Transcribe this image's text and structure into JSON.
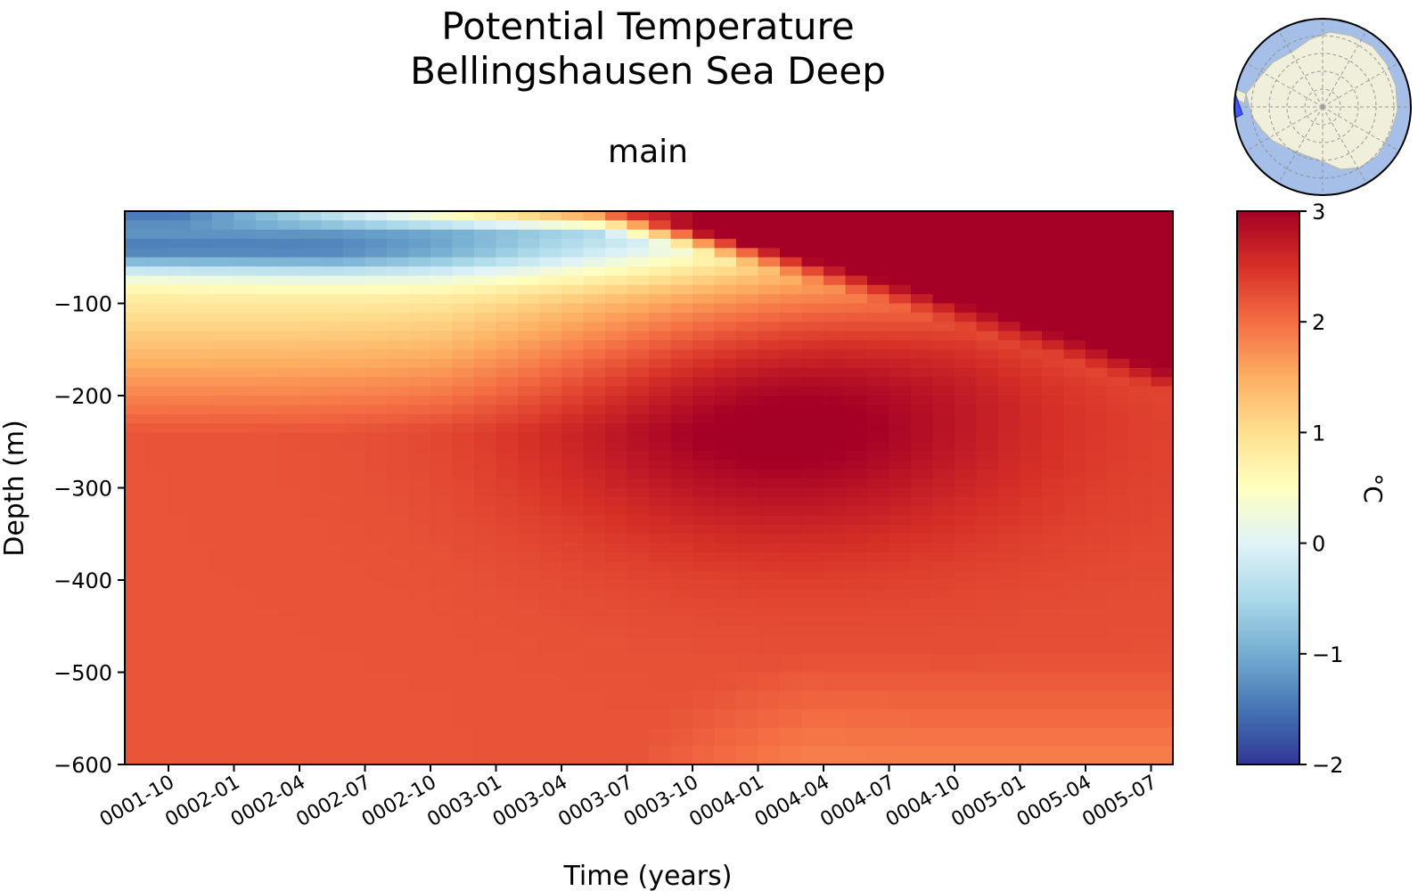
{
  "chart_data": {
    "type": "heatmap",
    "title": "Potential Temperature",
    "subtitle": "Bellingshausen Sea Deep",
    "panel_label": "main",
    "xlabel": "Time (years)",
    "ylabel": "Depth (m)",
    "x_tick_labels": [
      "0001-10",
      "0002-01",
      "0002-04",
      "0002-07",
      "0002-10",
      "0003-01",
      "0003-04",
      "0003-07",
      "0003-10",
      "0004-01",
      "0004-04",
      "0004-07",
      "0004-10",
      "0005-01",
      "0005-04",
      "0005-07"
    ],
    "y_ticks": [
      -100,
      -200,
      -300,
      -400,
      -500,
      -600
    ],
    "y_tick_labels": [
      "−100",
      "−200",
      "−300",
      "−400",
      "−500",
      "−600"
    ],
    "ylim": [
      -600,
      0
    ],
    "x_months": {
      "start": "0001-08",
      "end": "0005-07",
      "count": 48
    },
    "depth_levels_m": [
      -5,
      -15,
      -25,
      -35,
      -45,
      -55,
      -65,
      -75,
      -85,
      -95,
      -105,
      -115,
      -125,
      -135,
      -145,
      -155,
      -165,
      -175,
      -185,
      -195,
      -205,
      -215,
      -225,
      -235,
      -245,
      -255,
      -265,
      -275,
      -285,
      -295,
      -305,
      -315,
      -325,
      -335,
      -345,
      -355,
      -365,
      -375,
      -385,
      -395,
      -405,
      -415,
      -425,
      -435,
      -445,
      -455,
      -470,
      -490,
      -510,
      -530,
      -550,
      -570,
      -590
    ],
    "colorbar": {
      "label": "°C",
      "min": -2,
      "max": 3,
      "ticks": [
        3,
        2,
        1,
        0,
        -1,
        -2
      ],
      "tick_labels": [
        "3",
        "2",
        "1",
        "0",
        "−1",
        "−2"
      ],
      "colormap": "RdYlBu_r",
      "colors": [
        "#313695",
        "#4575b4",
        "#74add1",
        "#abd9e9",
        "#e0f3f8",
        "#ffffbf",
        "#fee090",
        "#fdae61",
        "#f46d43",
        "#d73027",
        "#a50026"
      ]
    },
    "temperature_structure_c": {
      "surface_start": -1.5,
      "surface_end": 3.0,
      "winter_water_core_min": -1.2,
      "winter_water_core_depth_m": -45,
      "subsurface_max": 3.0,
      "subsurface_max_time": "0004-01",
      "subsurface_max_depth_m": -220,
      "deep_value_range": [
        1.8,
        2.4
      ]
    }
  },
  "inset_map": {
    "name": "Antarctica region locator",
    "ocean_color": "#a6bfe8",
    "land_color": "#efefdb",
    "region_color": "#3b4ff0"
  }
}
